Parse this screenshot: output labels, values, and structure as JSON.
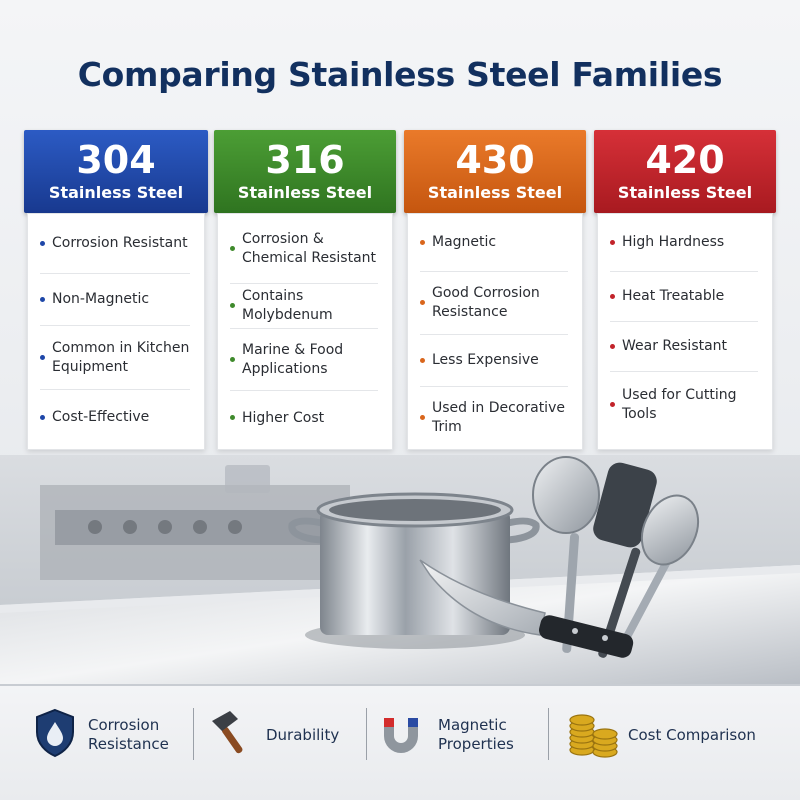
{
  "title": "Comparing Stainless Steel Families",
  "cards": [
    {
      "number": "304",
      "subtitle": "Stainless Steel",
      "color": "#1e47a8",
      "features": [
        "Corrosion Resistant",
        "Non-Magnetic",
        "Common in Kitchen Equipment",
        "Cost-Effective"
      ]
    },
    {
      "number": "316",
      "subtitle": "Stainless Steel",
      "color": "#3f8a2c",
      "features": [
        "Corrosion & Chemical Resistant",
        "Contains Molybdenum",
        "Marine & Food Applications",
        "Higher Cost"
      ]
    },
    {
      "number": "430",
      "subtitle": "Stainless Steel",
      "color": "#d9661c",
      "features": [
        "Magnetic",
        "Good Corrosion Resistance",
        "Less Expensive",
        "Used in Decorative Trim"
      ]
    },
    {
      "number": "420",
      "subtitle": "Stainless Steel",
      "color": "#c2232a",
      "features": [
        "High Hardness",
        "Heat Treatable",
        "Wear Resistant",
        "Used for Cutting Tools"
      ]
    }
  ],
  "legend": [
    {
      "label": "Corrosion Resistance",
      "icon": "shield-droplet-icon"
    },
    {
      "label": "Durability",
      "icon": "hammer-icon"
    },
    {
      "label": "Magnetic Properties",
      "icon": "magnet-icon"
    },
    {
      "label": "Cost Comparison",
      "icon": "coins-icon"
    }
  ]
}
